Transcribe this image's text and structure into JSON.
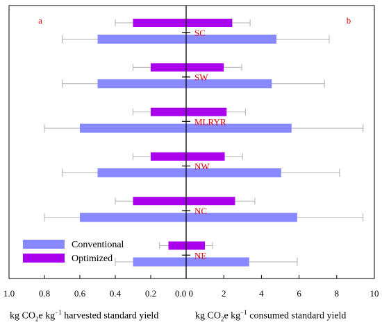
{
  "chart_data": {
    "type": "bar",
    "orientation": "horizontal",
    "panels": {
      "left": {
        "label": "a",
        "xlim": [
          0,
          1.0
        ],
        "direction": "reversed",
        "ticks": [
          "1.0",
          "0.8",
          "0.6",
          "0.4",
          "0.2",
          "0.0"
        ],
        "xlabel_parts": {
          "a": "kg CO",
          "b": "2",
          "c": "e kg",
          "d": "−1",
          "e": " harvested standard yield"
        }
      },
      "right": {
        "label": "b",
        "xlim": [
          0,
          10
        ],
        "ticks": [
          "0",
          "2",
          "4",
          "6",
          "8",
          "10"
        ],
        "xlabel_parts": {
          "a": "kg CO",
          "b": "2",
          "c": "e kg",
          "d": "−1",
          "e": " consumed standard yield"
        }
      }
    },
    "categories": [
      "SC",
      "SW",
      "MLRYR",
      "NW",
      "NC",
      "NE"
    ],
    "series": [
      {
        "name": "Conventional",
        "color": "#8888ff",
        "left_values": [
          0.5,
          0.5,
          0.6,
          0.5,
          0.6,
          0.3
        ],
        "left_err": [
          0.2,
          0.2,
          0.2,
          0.2,
          0.2,
          0.1
        ],
        "right_values": [
          4.8,
          4.55,
          5.6,
          5.05,
          5.9,
          3.35
        ],
        "right_err": [
          2.8,
          2.8,
          3.8,
          3.1,
          3.5,
          2.55
        ]
      },
      {
        "name": "Optimized",
        "color": "#aa00ee",
        "left_values": [
          0.3,
          0.2,
          0.2,
          0.2,
          0.3,
          0.1
        ],
        "left_err": [
          0.1,
          0.1,
          0.1,
          0.1,
          0.1,
          0.05
        ],
        "right_values": [
          2.45,
          2.0,
          2.15,
          2.05,
          2.6,
          1.0
        ],
        "right_err": [
          0.95,
          0.95,
          1.0,
          0.95,
          1.05,
          0.4
        ]
      }
    ],
    "legend_position": "bottom-left",
    "error_bar_color": "#b0b0b0"
  }
}
